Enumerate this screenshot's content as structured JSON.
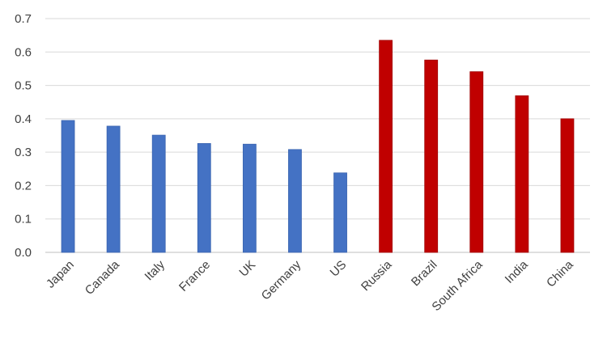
{
  "chart_data": {
    "type": "bar",
    "title": "",
    "xlabel": "",
    "ylabel": "",
    "ylim": [
      0,
      0.7
    ],
    "yticks": [
      "0.0",
      "0.1",
      "0.2",
      "0.3",
      "0.4",
      "0.5",
      "0.6",
      "0.7"
    ],
    "grid": true,
    "legend": "none",
    "categories": [
      "Japan",
      "Canada",
      "Italy",
      "France",
      "UK",
      "Germany",
      "US",
      "Russia",
      "Brazil",
      "South Africa",
      "India",
      "China"
    ],
    "values": [
      0.395,
      0.378,
      0.351,
      0.326,
      0.324,
      0.308,
      0.238,
      0.635,
      0.576,
      0.541,
      0.469,
      0.4
    ],
    "colors": [
      "#4472c4",
      "#4472c4",
      "#4472c4",
      "#4472c4",
      "#4472c4",
      "#4472c4",
      "#4472c4",
      "#c00000",
      "#c00000",
      "#c00000",
      "#c00000",
      "#c00000"
    ],
    "palette": {
      "blue": "#4472c4",
      "red": "#c00000"
    }
  }
}
